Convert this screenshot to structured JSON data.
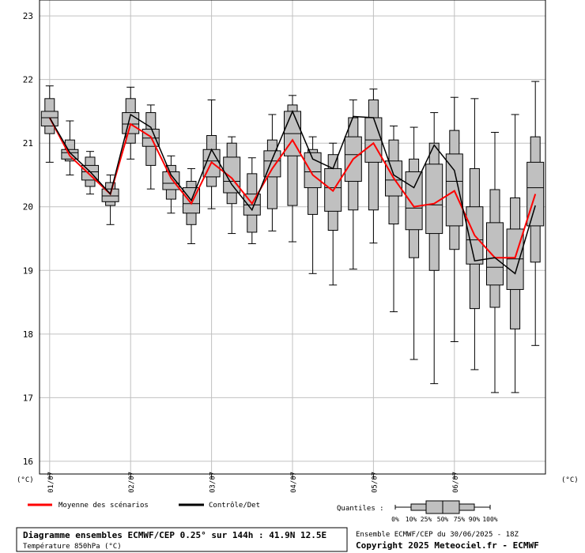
{
  "chart_data": {
    "type": "boxplot",
    "title": "Diagramme ensembles ECMWF/CEP 0.25° sur 144h : 41.9N 12.5E",
    "subtitle": "Température 850hPa (°C)",
    "ylabel_left": "(°C)",
    "ylabel_right": "(°C)",
    "ylim": [
      15.8,
      23.25
    ],
    "yticks": [
      16,
      17,
      18,
      19,
      20,
      21,
      22,
      23
    ],
    "ytick_labels": [
      "16",
      "17",
      "18",
      "19",
      "20",
      "21",
      "22",
      "23"
    ],
    "grid": true,
    "x_start_hour": -3,
    "x_end_hour": 144,
    "date_ticks": [
      {
        "hour": 0,
        "label": "01/07"
      },
      {
        "hour": 24,
        "label": "02/07"
      },
      {
        "hour": 48,
        "label": "03/07"
      },
      {
        "hour": 72,
        "label": "04/07"
      },
      {
        "hour": 96,
        "label": "05/07"
      },
      {
        "hour": 120,
        "label": "06/07"
      }
    ],
    "boxes": [
      {
        "hour": 0,
        "p0": 20.7,
        "p10": 21.15,
        "p25": 21.27,
        "p50": 21.4,
        "p75": 21.5,
        "p90": 21.7,
        "p100": 21.9
      },
      {
        "hour": 6,
        "p0": 20.5,
        "p10": 20.72,
        "p25": 20.75,
        "p50": 20.85,
        "p75": 20.9,
        "p90": 21.05,
        "p100": 21.35
      },
      {
        "hour": 12,
        "p0": 20.2,
        "p10": 20.32,
        "p25": 20.42,
        "p50": 20.55,
        "p75": 20.65,
        "p90": 20.78,
        "p100": 20.87
      },
      {
        "hour": 18,
        "p0": 19.72,
        "p10": 20.02,
        "p25": 20.08,
        "p50": 20.17,
        "p75": 20.28,
        "p90": 20.38,
        "p100": 20.5
      },
      {
        "hour": 24,
        "p0": 20.75,
        "p10": 21.0,
        "p25": 21.15,
        "p50": 21.3,
        "p75": 21.48,
        "p90": 21.7,
        "p100": 21.88
      },
      {
        "hour": 30,
        "p0": 20.28,
        "p10": 20.65,
        "p25": 20.95,
        "p50": 21.08,
        "p75": 21.22,
        "p90": 21.48,
        "p100": 21.6
      },
      {
        "hour": 36,
        "p0": 19.9,
        "p10": 20.12,
        "p25": 20.27,
        "p50": 20.37,
        "p75": 20.55,
        "p90": 20.65,
        "p100": 20.8
      },
      {
        "hour": 42,
        "p0": 19.42,
        "p10": 19.72,
        "p25": 19.9,
        "p50": 20.05,
        "p75": 20.3,
        "p90": 20.4,
        "p100": 20.6
      },
      {
        "hour": 48,
        "p0": 19.97,
        "p10": 20.32,
        "p25": 20.47,
        "p50": 20.72,
        "p75": 20.9,
        "p90": 21.12,
        "p100": 21.68
      },
      {
        "hour": 54,
        "p0": 19.58,
        "p10": 20.05,
        "p25": 20.22,
        "p50": 20.4,
        "p75": 20.78,
        "p90": 21.0,
        "p100": 21.1
      },
      {
        "hour": 60,
        "p0": 19.42,
        "p10": 19.6,
        "p25": 19.87,
        "p50": 20.03,
        "p75": 20.2,
        "p90": 20.52,
        "p100": 20.77
      },
      {
        "hour": 66,
        "p0": 19.62,
        "p10": 19.97,
        "p25": 20.47,
        "p50": 20.72,
        "p75": 20.88,
        "p90": 21.05,
        "p100": 21.45
      },
      {
        "hour": 72,
        "p0": 19.45,
        "p10": 20.02,
        "p25": 20.8,
        "p50": 21.15,
        "p75": 21.5,
        "p90": 21.6,
        "p100": 21.75
      },
      {
        "hour": 78,
        "p0": 18.95,
        "p10": 19.88,
        "p25": 20.3,
        "p50": 20.55,
        "p75": 20.85,
        "p90": 20.9,
        "p100": 21.1
      },
      {
        "hour": 84,
        "p0": 18.77,
        "p10": 19.63,
        "p25": 19.93,
        "p50": 20.3,
        "p75": 20.6,
        "p90": 20.82,
        "p100": 21.0
      },
      {
        "hour": 90,
        "p0": 19.02,
        "p10": 19.95,
        "p25": 20.4,
        "p50": 20.82,
        "p75": 21.1,
        "p90": 21.4,
        "p100": 21.68
      },
      {
        "hour": 96,
        "p0": 19.43,
        "p10": 19.95,
        "p25": 20.7,
        "p50": 21.05,
        "p75": 21.4,
        "p90": 21.68,
        "p100": 21.85
      },
      {
        "hour": 102,
        "p0": 18.35,
        "p10": 19.73,
        "p25": 20.17,
        "p50": 20.42,
        "p75": 20.72,
        "p90": 21.05,
        "p100": 21.27
      },
      {
        "hour": 108,
        "p0": 17.6,
        "p10": 19.2,
        "p25": 19.64,
        "p50": 19.98,
        "p75": 20.55,
        "p90": 20.75,
        "p100": 21.25
      },
      {
        "hour": 114,
        "p0": 17.22,
        "p10": 19.0,
        "p25": 19.58,
        "p50": 20.03,
        "p75": 20.67,
        "p90": 21.0,
        "p100": 21.48
      },
      {
        "hour": 120,
        "p0": 17.88,
        "p10": 19.33,
        "p25": 19.7,
        "p50": 20.4,
        "p75": 20.83,
        "p90": 21.2,
        "p100": 21.72
      },
      {
        "hour": 126,
        "p0": 17.44,
        "p10": 18.4,
        "p25": 19.1,
        "p50": 19.48,
        "p75": 20.0,
        "p90": 20.6,
        "p100": 21.7
      },
      {
        "hour": 132,
        "p0": 17.08,
        "p10": 18.42,
        "p25": 18.77,
        "p50": 19.05,
        "p75": 19.75,
        "p90": 20.27,
        "p100": 21.17
      },
      {
        "hour": 138,
        "p0": 17.08,
        "p10": 18.08,
        "p25": 18.7,
        "p50": 19.18,
        "p75": 19.65,
        "p90": 20.14,
        "p100": 21.45
      },
      {
        "hour": 144,
        "p0": 17.82,
        "p10": 19.13,
        "p25": 19.7,
        "p50": 20.3,
        "p75": 20.7,
        "p90": 21.1,
        "p100": 21.97
      }
    ],
    "series": [
      {
        "name": "Moyenne des scénarios",
        "color": "#ff0000",
        "values": [
          21.4,
          20.8,
          20.5,
          20.2,
          21.3,
          21.1,
          20.45,
          20.05,
          20.7,
          20.45,
          20.05,
          20.6,
          21.05,
          20.5,
          20.25,
          20.75,
          21.0,
          20.45,
          20.0,
          20.05,
          20.25,
          19.55,
          19.2,
          19.2,
          20.2
        ]
      },
      {
        "name": "Contrôle/Det",
        "color": "#000000",
        "values": [
          21.4,
          20.85,
          20.55,
          20.2,
          21.45,
          21.25,
          20.5,
          20.1,
          20.9,
          20.35,
          19.95,
          20.75,
          21.5,
          20.75,
          20.6,
          21.42,
          21.4,
          20.5,
          20.3,
          20.97,
          20.57,
          19.15,
          19.2,
          18.95,
          20.02
        ]
      }
    ],
    "legend": {
      "position": "bottom",
      "quantiles_label": "Quantiles :",
      "quantile_ticks": [
        "0%",
        "10%",
        "25%",
        "50%",
        "75%",
        "90%",
        "100%"
      ]
    }
  },
  "footer": {
    "title": "Diagramme ensembles ECMWF/CEP 0.25° sur 144h : 41.9N 12.5E",
    "subtitle": "Température 850hPa (°C)",
    "run_info": "Ensemble ECMWF/CEP du 30/06/2025 - 18Z",
    "copyright": "Copyright 2025 Meteociel.fr - ECMWF"
  },
  "colors": {
    "box_fill": "#c0c0c0",
    "grid": "#c0c0c0",
    "mean_line": "#ff0000",
    "control_line": "#000000"
  }
}
